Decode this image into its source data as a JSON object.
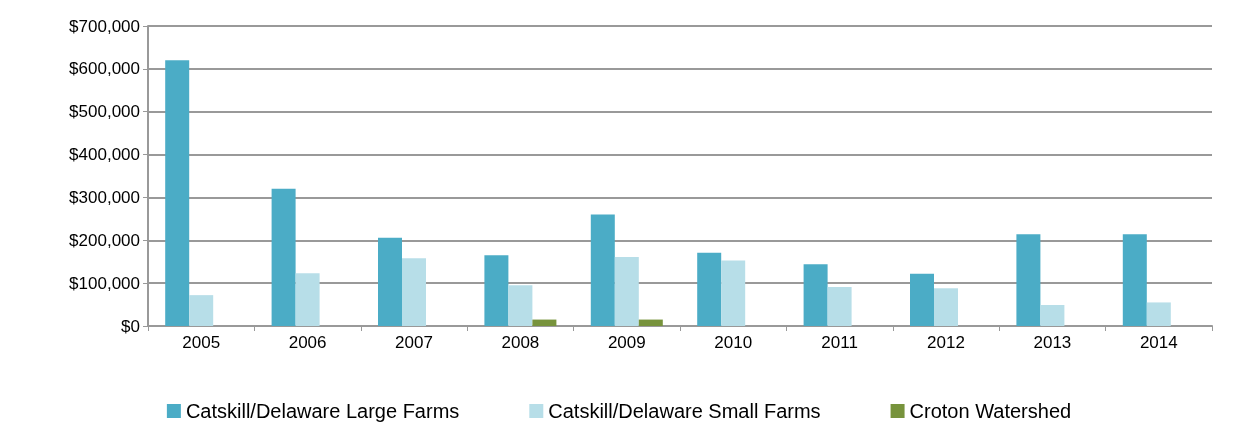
{
  "chart_data": {
    "type": "bar",
    "categories": [
      "2005",
      "2006",
      "2007",
      "2008",
      "2009",
      "2010",
      "2011",
      "2012",
      "2013",
      "2014"
    ],
    "series": [
      {
        "name": "Catskill/Delaware Large Farms",
        "color": "#4bacc6",
        "values": [
          620000,
          320000,
          206000,
          165000,
          260000,
          171000,
          144000,
          122000,
          214000,
          214000
        ]
      },
      {
        "name": "Catskill/Delaware Small Farms",
        "color": "#b7dee8",
        "values": [
          72000,
          123000,
          158000,
          95000,
          161000,
          153000,
          91000,
          88000,
          49000,
          55000
        ]
      },
      {
        "name": "Croton Watershed",
        "color": "#77933c",
        "values": [
          null,
          null,
          null,
          15000,
          15000,
          null,
          null,
          null,
          null,
          null
        ]
      }
    ],
    "ylim": [
      0,
      700000
    ],
    "yticks": [
      {
        "value": 0,
        "label": "$0"
      },
      {
        "value": 100000,
        "label": "$100,000"
      },
      {
        "value": 200000,
        "label": "$200,000"
      },
      {
        "value": 300000,
        "label": "$300,000"
      },
      {
        "value": 400000,
        "label": "$400,000"
      },
      {
        "value": 500000,
        "label": "$500,000"
      },
      {
        "value": 600000,
        "label": "$600,000"
      },
      {
        "value": 700000,
        "label": "$700,000"
      }
    ],
    "grid": "y",
    "legend": "bottom"
  }
}
